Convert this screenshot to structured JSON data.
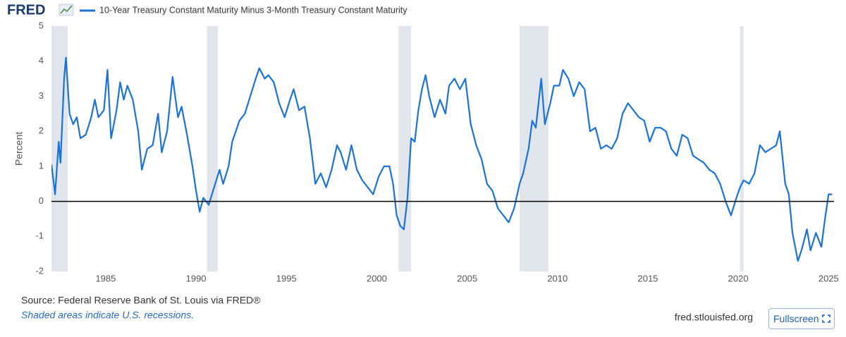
{
  "logo": "FRED",
  "chart_data": {
    "type": "line",
    "y_label": "Percent",
    "x": [
      1982.0,
      1982.2,
      1982.4,
      1982.5,
      1982.7,
      1982.8,
      1983.0,
      1983.2,
      1983.4,
      1983.6,
      1983.9,
      1984.2,
      1984.4,
      1984.6,
      1984.9,
      1985.1,
      1985.3,
      1985.6,
      1985.8,
      1986.0,
      1986.2,
      1986.5,
      1986.8,
      1987.0,
      1987.3,
      1987.6,
      1987.9,
      1988.1,
      1988.4,
      1988.7,
      1989.0,
      1989.2,
      1989.5,
      1989.8,
      1990.0,
      1990.2,
      1990.4,
      1990.7,
      1991.0,
      1991.3,
      1991.5,
      1991.8,
      1992.0,
      1992.4,
      1992.7,
      1993.0,
      1993.3,
      1993.5,
      1993.8,
      1994.0,
      1994.3,
      1994.6,
      1994.9,
      1995.2,
      1995.4,
      1995.7,
      1996.0,
      1996.3,
      1996.6,
      1996.9,
      1997.2,
      1997.5,
      1997.8,
      1998.0,
      1998.3,
      1998.6,
      1998.9,
      1999.2,
      1999.5,
      1999.8,
      2000.1,
      2000.4,
      2000.7,
      2000.9,
      2001.1,
      2001.3,
      2001.5,
      2001.7,
      2001.9,
      2002.1,
      2002.3,
      2002.5,
      2002.7,
      2002.9,
      2003.2,
      2003.5,
      2003.8,
      2004.0,
      2004.3,
      2004.6,
      2004.9,
      2005.2,
      2005.5,
      2005.8,
      2006.1,
      2006.4,
      2006.7,
      2007.0,
      2007.3,
      2007.6,
      2007.9,
      2008.1,
      2008.4,
      2008.6,
      2008.8,
      2009.1,
      2009.3,
      2009.6,
      2009.8,
      2010.1,
      2010.3,
      2010.6,
      2010.9,
      2011.2,
      2011.5,
      2011.8,
      2012.1,
      2012.4,
      2012.7,
      2013.0,
      2013.3,
      2013.6,
      2013.9,
      2014.2,
      2014.5,
      2014.8,
      2015.1,
      2015.4,
      2015.7,
      2016.0,
      2016.3,
      2016.6,
      2016.9,
      2017.2,
      2017.5,
      2017.8,
      2018.1,
      2018.4,
      2018.7,
      2019.0,
      2019.3,
      2019.6,
      2019.9,
      2020.1,
      2020.3,
      2020.6,
      2020.9,
      2021.2,
      2021.5,
      2021.8,
      2022.1,
      2022.3,
      2022.6,
      2022.8,
      2023.0,
      2023.3,
      2023.5,
      2023.8,
      2024.0,
      2024.3,
      2024.6,
      2024.8,
      2025.0,
      2025.2
    ],
    "series": [
      {
        "name": "10-Year Treasury Constant Maturity Minus 3-Month Treasury Constant Maturity",
        "color": "#1b72d8",
        "values": [
          1.05,
          0.2,
          1.7,
          1.1,
          3.5,
          4.1,
          2.5,
          2.2,
          2.4,
          1.8,
          1.9,
          2.4,
          2.9,
          2.4,
          2.6,
          3.75,
          1.8,
          2.6,
          3.4,
          2.9,
          3.3,
          2.9,
          2.0,
          0.9,
          1.5,
          1.6,
          2.5,
          1.4,
          2.0,
          3.55,
          2.4,
          2.7,
          1.9,
          1.0,
          0.3,
          -0.3,
          0.1,
          -0.1,
          0.4,
          0.9,
          0.5,
          1.0,
          1.7,
          2.3,
          2.5,
          3.0,
          3.5,
          3.8,
          3.5,
          3.6,
          3.4,
          2.8,
          2.4,
          2.9,
          3.2,
          2.6,
          2.7,
          1.8,
          0.5,
          0.8,
          0.4,
          0.9,
          1.6,
          1.4,
          0.9,
          1.6,
          0.9,
          0.6,
          0.4,
          0.2,
          0.7,
          1.0,
          1.0,
          0.5,
          -0.4,
          -0.7,
          -0.8,
          0.1,
          1.8,
          1.7,
          2.6,
          3.2,
          3.6,
          3.0,
          2.4,
          2.9,
          2.5,
          3.3,
          3.5,
          3.2,
          3.5,
          2.2,
          1.6,
          1.2,
          0.5,
          0.3,
          -0.2,
          -0.4,
          -0.6,
          -0.2,
          0.5,
          0.8,
          1.5,
          2.3,
          2.1,
          3.5,
          2.2,
          2.8,
          3.3,
          3.3,
          3.75,
          3.5,
          3.0,
          3.4,
          3.2,
          2.0,
          2.1,
          1.5,
          1.6,
          1.5,
          1.8,
          2.5,
          2.8,
          2.6,
          2.4,
          2.3,
          1.7,
          2.1,
          2.1,
          2.0,
          1.5,
          1.3,
          1.9,
          1.8,
          1.3,
          1.2,
          1.1,
          0.9,
          0.8,
          0.5,
          0.0,
          -0.4,
          0.1,
          0.4,
          0.6,
          0.5,
          0.8,
          1.6,
          1.4,
          1.5,
          1.6,
          2.0,
          0.5,
          0.2,
          -0.9,
          -1.7,
          -1.4,
          -0.8,
          -1.4,
          -0.9,
          -1.3,
          -0.5,
          0.2,
          0.2
        ]
      }
    ],
    "recessions": [
      [
        1981.6,
        1982.9
      ],
      [
        1990.6,
        1991.2
      ],
      [
        2001.2,
        2001.9
      ],
      [
        2007.9,
        2009.5
      ],
      [
        2020.1,
        2020.3
      ]
    ],
    "recession_color": "#e1e5ec",
    "xlim": [
      1982,
      2025.3
    ],
    "xticks": [
      1985,
      1990,
      1995,
      2000,
      2005,
      2010,
      2015,
      2020,
      2025
    ],
    "ylim": [
      -2,
      5
    ],
    "yticks": [
      -2,
      -1,
      0,
      1,
      2,
      3,
      4,
      5
    ],
    "grid": false,
    "zero_line": true
  },
  "footer": {
    "source": "Source: Federal Reserve Bank of St. Louis via FRED®",
    "note": "Shaded areas indicate U.S. recessions.",
    "site": "fred.stlouisfed.org",
    "button": "Fullscreen"
  }
}
